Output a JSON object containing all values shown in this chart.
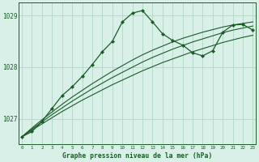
{
  "title": "Graphe pression niveau de la mer (hPa)",
  "background_color": "#d8f0e8",
  "grid_color": "#b8d8cc",
  "line_color": "#1a5c28",
  "x_values": [
    0,
    1,
    2,
    3,
    4,
    5,
    6,
    7,
    8,
    9,
    10,
    11,
    12,
    13,
    14,
    15,
    16,
    17,
    18,
    19,
    20,
    21,
    22,
    23
  ],
  "y_main": [
    1026.65,
    1026.75,
    1026.95,
    1027.2,
    1027.45,
    1027.62,
    1027.82,
    1028.05,
    1028.3,
    1028.5,
    1028.88,
    1029.05,
    1029.1,
    1028.88,
    1028.65,
    1028.52,
    1028.43,
    1028.28,
    1028.22,
    1028.32,
    1028.68,
    1028.82,
    1028.83,
    1028.72
  ],
  "y_smooth1": [
    1026.65,
    1026.82,
    1026.98,
    1027.13,
    1027.28,
    1027.42,
    1027.55,
    1027.68,
    1027.8,
    1027.92,
    1028.03,
    1028.14,
    1028.24,
    1028.33,
    1028.41,
    1028.49,
    1028.56,
    1028.62,
    1028.68,
    1028.73,
    1028.78,
    1028.82,
    1028.85,
    1028.88
  ],
  "y_smooth2": [
    1026.65,
    1026.8,
    1026.94,
    1027.08,
    1027.21,
    1027.34,
    1027.46,
    1027.58,
    1027.69,
    1027.8,
    1027.9,
    1028.0,
    1028.1,
    1028.19,
    1028.27,
    1028.35,
    1028.42,
    1028.49,
    1028.55,
    1028.61,
    1028.67,
    1028.72,
    1028.76,
    1028.8
  ],
  "y_smooth3": [
    1026.65,
    1026.78,
    1026.9,
    1027.02,
    1027.14,
    1027.25,
    1027.36,
    1027.46,
    1027.56,
    1027.66,
    1027.75,
    1027.84,
    1027.93,
    1028.01,
    1028.09,
    1028.16,
    1028.23,
    1028.3,
    1028.36,
    1028.42,
    1028.48,
    1028.53,
    1028.58,
    1028.62
  ],
  "ylim": [
    1026.5,
    1029.25
  ],
  "yticks": [
    1027,
    1028,
    1029
  ],
  "xlim": [
    -0.3,
    23.3
  ]
}
